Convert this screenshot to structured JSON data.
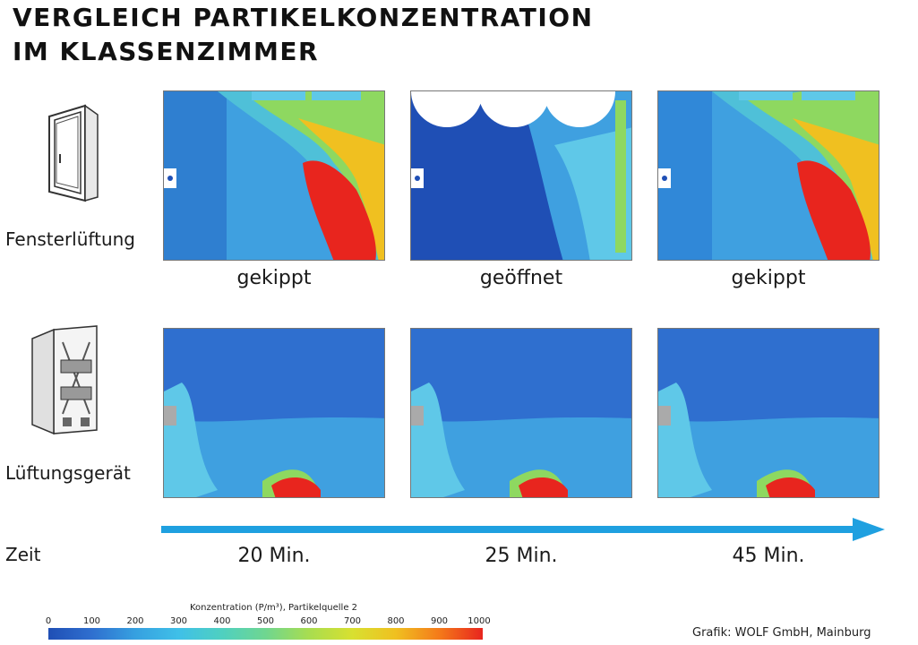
{
  "title": {
    "line1": "VERGLEICH PARTIKELKONZENTRATION",
    "line2": "IM KLASSENZIMMER"
  },
  "rows": [
    {
      "label": "Fensterlüftung",
      "icon": "window-icon",
      "captions": [
        "gekippt",
        "geöffnet",
        "gekippt"
      ]
    },
    {
      "label": "Lüftungsgerät",
      "icon": "ventilation-unit-icon",
      "captions": []
    }
  ],
  "timeline": {
    "label": "Zeit",
    "times": [
      "20 Min.",
      "25 Min.",
      "45 Min."
    ]
  },
  "colorbar": {
    "title": "Konzentration (P/m³), Partikelquelle 2",
    "ticks": [
      "0",
      "100",
      "200",
      "300",
      "400",
      "500",
      "600",
      "700",
      "800",
      "900",
      "1000"
    ],
    "range": [
      0,
      1000
    ]
  },
  "credit": "Grafik: WOLF GmbH, Mainburg",
  "colors": {
    "low": "#1f4fb5",
    "mid": "#6fd690",
    "high": "#e8251e",
    "arrow": "#1fa0e0"
  }
}
